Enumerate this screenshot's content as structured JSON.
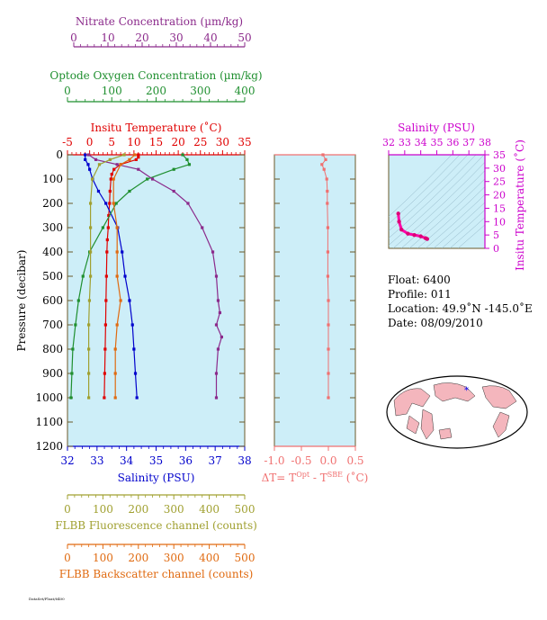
{
  "colors": {
    "nitrate": "#8b2a8b",
    "oxygen": "#1f8f2f",
    "temperature": "#e00000",
    "salinity": "#0000cc",
    "fluorescence": "#a0a030",
    "backscatter": "#e06a10",
    "delta_t": "#f07070",
    "ts_axis": "#cc00cc",
    "panel_bg": "#cdeef8",
    "frame": "#6b5a2a"
  },
  "axes": {
    "nitrate": {
      "label": "Nitrate Concentration (µm/kg)",
      "ticks": [
        "0",
        "10",
        "20",
        "30",
        "40",
        "50"
      ]
    },
    "oxygen": {
      "label": "Optode Oxygen Concentration (µm/kg)",
      "ticks": [
        "0",
        "100",
        "200",
        "300",
        "400"
      ]
    },
    "temperature": {
      "label": "Insitu Temperature (˚C)",
      "ticks": [
        "-5",
        "0",
        "5",
        "10",
        "15",
        "20",
        "25",
        "30",
        "35"
      ]
    },
    "pressure": {
      "label": "Pressure (decibar)",
      "ticks": [
        "0",
        "100",
        "200",
        "300",
        "400",
        "500",
        "600",
        "700",
        "800",
        "900",
        "1000",
        "1100",
        "1200"
      ]
    },
    "salinity": {
      "label": "Salinity (PSU)",
      "ticks": [
        "32",
        "33",
        "34",
        "35",
        "36",
        "37",
        "38"
      ]
    },
    "fluorescence": {
      "label": "FLBB Fluorescence channel (counts)",
      "ticks": [
        "0",
        "100",
        "200",
        "300",
        "400",
        "500"
      ]
    },
    "backscatter": {
      "label": "FLBB Backscatter channel (counts)",
      "ticks": [
        "0",
        "100",
        "200",
        "300",
        "400",
        "500"
      ]
    },
    "delta_t": {
      "label_main": "ΔT= T",
      "label_sup1": "Opt",
      "label_mid": " - T",
      "label_sup2": "SBE",
      "label_end": " (˚C)",
      "ticks": [
        "-1.0",
        "-0.5",
        "0.0",
        "0.5"
      ]
    },
    "ts_salinity": {
      "label": "Salinity (PSU)",
      "ticks": [
        "32",
        "33",
        "34",
        "35",
        "36",
        "37",
        "38"
      ]
    },
    "ts_temperature": {
      "label": "Insitu Temperature (˚C)",
      "ticks": [
        "0",
        "5",
        "10",
        "15",
        "20",
        "25",
        "30",
        "35"
      ]
    }
  },
  "info": {
    "float": "Float:  6400",
    "profile": "Profile:  011",
    "location": "Location:  49.9˚N  -145.0˚E",
    "date": "Date:  08/09/2010"
  },
  "footer": "DataSet/Float/6400",
  "chart_data": [
    {
      "type": "line",
      "title": "",
      "ylabel": "Pressure (decibar)",
      "ylim": [
        1200,
        0
      ],
      "series": [
        {
          "name": "Insitu Temperature (˚C)",
          "xlim": [
            -5,
            35
          ],
          "points": [
            [
              11,
              0
            ],
            [
              11,
              10
            ],
            [
              10.5,
              20
            ],
            [
              7,
              40
            ],
            [
              5.5,
              60
            ],
            [
              5,
              80
            ],
            [
              4.8,
              100
            ],
            [
              4.6,
              150
            ],
            [
              4.5,
              200
            ],
            [
              4.3,
              250
            ],
            [
              4.2,
              300
            ],
            [
              4,
              350
            ],
            [
              3.9,
              400
            ],
            [
              3.8,
              500
            ],
            [
              3.7,
              600
            ],
            [
              3.6,
              700
            ],
            [
              3.5,
              800
            ],
            [
              3.4,
              900
            ],
            [
              3.3,
              1000
            ]
          ]
        },
        {
          "name": "Salinity (PSU)",
          "xlim": [
            32,
            38
          ],
          "points": [
            [
              32.6,
              0
            ],
            [
              32.6,
              20
            ],
            [
              32.7,
              40
            ],
            [
              32.75,
              60
            ],
            [
              32.85,
              100
            ],
            [
              33.05,
              150
            ],
            [
              33.3,
              200
            ],
            [
              33.7,
              300
            ],
            [
              33.85,
              400
            ],
            [
              33.95,
              500
            ],
            [
              34.1,
              600
            ],
            [
              34.2,
              700
            ],
            [
              34.25,
              800
            ],
            [
              34.3,
              900
            ],
            [
              34.35,
              1000
            ]
          ]
        },
        {
          "name": "Optode Oxygen Concentration (µm/kg)",
          "xlim": [
            0,
            400
          ],
          "points": [
            [
              260,
              0
            ],
            [
              270,
              20
            ],
            [
              275,
              40
            ],
            [
              240,
              60
            ],
            [
              180,
              100
            ],
            [
              140,
              150
            ],
            [
              110,
              200
            ],
            [
              80,
              300
            ],
            [
              50,
              400
            ],
            [
              35,
              500
            ],
            [
              25,
              600
            ],
            [
              18,
              700
            ],
            [
              12,
              800
            ],
            [
              10,
              900
            ],
            [
              8,
              1000
            ]
          ]
        },
        {
          "name": "Nitrate Concentration (µm/kg)",
          "xlim": [
            0,
            50
          ],
          "points": [
            [
              6,
              0
            ],
            [
              8,
              20
            ],
            [
              14,
              40
            ],
            [
              20,
              60
            ],
            [
              24,
              100
            ],
            [
              30,
              150
            ],
            [
              34,
              200
            ],
            [
              38,
              300
            ],
            [
              41,
              400
            ],
            [
              42,
              500
            ],
            [
              42.5,
              600
            ],
            [
              43,
              650
            ],
            [
              42,
              700
            ],
            [
              43.5,
              750
            ],
            [
              42.5,
              800
            ],
            [
              42,
              900
            ],
            [
              42,
              1000
            ]
          ]
        },
        {
          "name": "FLBB Fluorescence channel (counts)",
          "xlim": [
            0,
            500
          ],
          "points": [
            [
              160,
              0
            ],
            [
              120,
              20
            ],
            [
              90,
              40
            ],
            [
              70,
              100
            ],
            [
              65,
              200
            ],
            [
              65,
              300
            ],
            [
              65,
              400
            ],
            [
              65,
              500
            ],
            [
              62,
              600
            ],
            [
              60,
              700
            ],
            [
              60,
              800
            ],
            [
              60,
              900
            ],
            [
              60,
              1000
            ]
          ]
        },
        {
          "name": "FLBB Backscatter channel (counts)",
          "xlim": [
            0,
            500
          ],
          "points": [
            [
              190,
              0
            ],
            [
              175,
              20
            ],
            [
              150,
              40
            ],
            [
              130,
              100
            ],
            [
              130,
              200
            ],
            [
              140,
              300
            ],
            [
              140,
              400
            ],
            [
              140,
              500
            ],
            [
              150,
              600
            ],
            [
              140,
              700
            ],
            [
              135,
              800
            ],
            [
              135,
              900
            ],
            [
              135,
              1000
            ]
          ]
        }
      ]
    },
    {
      "type": "line",
      "title": "",
      "xlabel": "ΔT= TOpt - TSBE (˚C)",
      "xlim": [
        -1.0,
        0.5
      ],
      "ylim": [
        1200,
        0
      ],
      "series": [
        {
          "name": "ΔT",
          "points": [
            [
              -0.1,
              0
            ],
            [
              -0.05,
              20
            ],
            [
              -0.12,
              40
            ],
            [
              -0.08,
              60
            ],
            [
              -0.03,
              100
            ],
            [
              -0.02,
              150
            ],
            [
              -0.02,
              200
            ],
            [
              -0.01,
              300
            ],
            [
              -0.01,
              400
            ],
            [
              -0.01,
              500
            ],
            [
              0,
              600
            ],
            [
              0,
              700
            ],
            [
              0,
              800
            ],
            [
              0,
              900
            ],
            [
              0,
              1000
            ]
          ]
        }
      ]
    },
    {
      "type": "scatter",
      "title": "",
      "xlabel": "Salinity (PSU)",
      "ylabel": "Insitu Temperature (˚C)",
      "xlim": [
        32,
        38
      ],
      "ylim": [
        0,
        35
      ],
      "series": [
        {
          "name": "T-S",
          "points": [
            [
              32.6,
              13
            ],
            [
              32.65,
              10
            ],
            [
              32.8,
              7
            ],
            [
              33.2,
              5.5
            ],
            [
              33.6,
              5
            ],
            [
              34,
              4.5
            ],
            [
              34.3,
              3.8
            ],
            [
              34.4,
              3.5
            ]
          ]
        }
      ]
    }
  ]
}
